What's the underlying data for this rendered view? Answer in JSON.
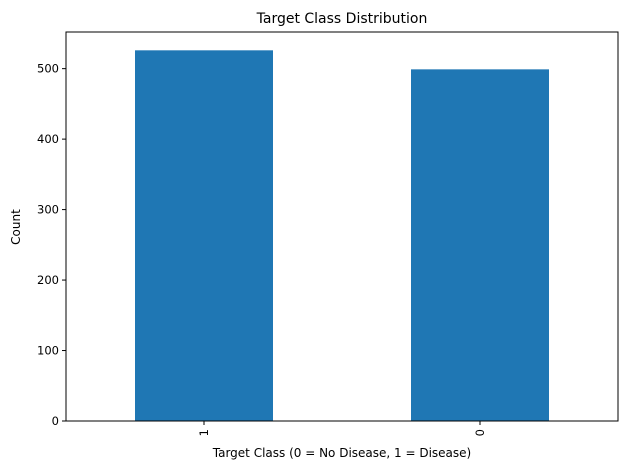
{
  "chart_data": {
    "type": "bar",
    "title": "Target Class Distribution",
    "xlabel": "Target Class (0 = No Disease, 1 = Disease)",
    "ylabel": "Count",
    "categories": [
      "1",
      "0"
    ],
    "values": [
      526,
      499
    ],
    "ylim": [
      0,
      552
    ],
    "yticks": [
      0,
      100,
      200,
      300,
      400,
      500
    ],
    "bar_color": "#1f77b4",
    "grid": false,
    "legend": "none",
    "x_tick_rotation": "vertical"
  }
}
